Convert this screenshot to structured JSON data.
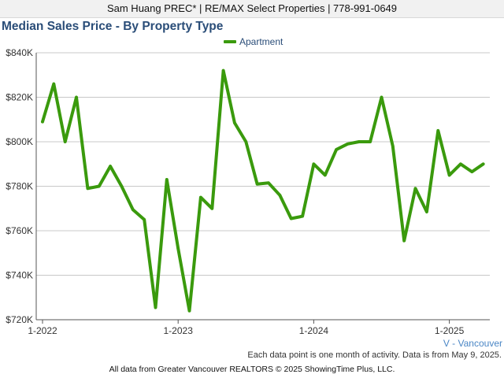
{
  "header": {
    "agent_line": "Sam Huang PREC* | RE/MAX Select Properties | 778-991-0649"
  },
  "region_label": "V - Vancouver",
  "note": "Each data point is one month of activity. Data is from May 9, 2025.",
  "footer": "All data from Greater Vancouver REALTORS © 2025 ShowingTime Plus, LLC.",
  "colors": {
    "series": "#3a9a0d",
    "title": "#2a4d78",
    "grid": "#c8c8c8"
  },
  "chart_data": {
    "type": "line",
    "title": "Median Sales Price - By Property Type",
    "xlabel": "",
    "ylabel": "",
    "ylim": [
      720000,
      840000
    ],
    "yticks": [
      720000,
      740000,
      760000,
      780000,
      800000,
      820000,
      840000
    ],
    "ytick_labels": [
      "$720K",
      "$740K",
      "$760K",
      "$780K",
      "$800K",
      "$820K",
      "$840K"
    ],
    "xticks": [
      {
        "label": "1-2022",
        "month_index": 0
      },
      {
        "label": "1-2023",
        "month_index": 12
      },
      {
        "label": "1-2024",
        "month_index": 24
      },
      {
        "label": "1-2025",
        "month_index": 36
      }
    ],
    "legend": "top-center",
    "grid": true,
    "series": [
      {
        "name": "Apartment",
        "x": [
          "2022-01",
          "2022-02",
          "2022-03",
          "2022-04",
          "2022-05",
          "2022-06",
          "2022-07",
          "2022-08",
          "2022-09",
          "2022-10",
          "2022-11",
          "2022-12",
          "2023-01",
          "2023-02",
          "2023-03",
          "2023-04",
          "2023-05",
          "2023-06",
          "2023-07",
          "2023-08",
          "2023-09",
          "2023-10",
          "2023-11",
          "2023-12",
          "2024-01",
          "2024-02",
          "2024-03",
          "2024-04",
          "2024-05",
          "2024-06",
          "2024-07",
          "2024-08",
          "2024-09",
          "2024-10",
          "2024-11",
          "2024-12",
          "2025-01",
          "2025-02",
          "2025-03",
          "2025-04"
        ],
        "values": [
          809000,
          826000,
          800000,
          820000,
          779000,
          780000,
          789000,
          780000,
          769500,
          765000,
          725500,
          783000,
          752000,
          724000,
          775000,
          770000,
          832000,
          808500,
          800000,
          781000,
          781500,
          776000,
          765500,
          766500,
          790000,
          785000,
          796500,
          799000,
          800000,
          800000,
          820000,
          798000,
          755500,
          779000,
          768500,
          805000,
          785000,
          790000,
          786500,
          790000
        ]
      }
    ]
  }
}
